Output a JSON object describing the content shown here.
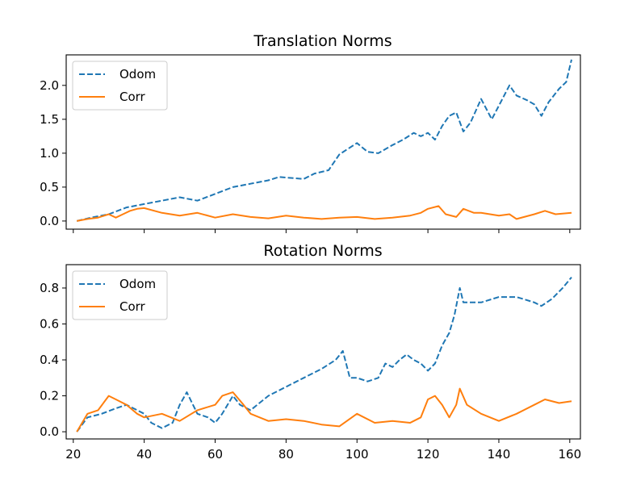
{
  "chart_data": [
    {
      "type": "line",
      "title": "Translation Norms",
      "xlabel": "",
      "ylabel": "",
      "xlim": [
        18,
        163
      ],
      "ylim": [
        -0.12,
        2.45
      ],
      "xticks": [
        20,
        40,
        60,
        80,
        100,
        120,
        140,
        160
      ],
      "show_xtick_labels": false,
      "yticks": [
        0.0,
        0.5,
        1.0,
        1.5,
        2.0
      ],
      "ytick_labels": [
        "0.0",
        "0.5",
        "1.0",
        "1.5",
        "2.0"
      ],
      "grid": false,
      "legend_position": "top-left",
      "series": [
        {
          "name": "Odom",
          "color": "#1f77b4",
          "dash": "dashed",
          "x": [
            21,
            25,
            30,
            35,
            40,
            45,
            50,
            55,
            60,
            65,
            70,
            75,
            78,
            85,
            88,
            92,
            95,
            97,
            100,
            103,
            106,
            110,
            113,
            116,
            118,
            120,
            122,
            124,
            126,
            128,
            130,
            132,
            135,
            138,
            140,
            143,
            145,
            148,
            150,
            152,
            154,
            157,
            159,
            160.5
          ],
          "y": [
            0.0,
            0.05,
            0.1,
            0.2,
            0.25,
            0.3,
            0.35,
            0.3,
            0.4,
            0.5,
            0.55,
            0.6,
            0.65,
            0.62,
            0.7,
            0.75,
            0.98,
            1.05,
            1.15,
            1.02,
            1.0,
            1.12,
            1.2,
            1.3,
            1.25,
            1.3,
            1.2,
            1.4,
            1.55,
            1.6,
            1.32,
            1.45,
            1.8,
            1.5,
            1.7,
            2.0,
            1.85,
            1.78,
            1.72,
            1.55,
            1.75,
            1.95,
            2.05,
            2.38
          ]
        },
        {
          "name": "Corr",
          "color": "#ff7f0e",
          "dash": "solid",
          "x": [
            21,
            24,
            27,
            30,
            32,
            34,
            36,
            38,
            40,
            45,
            50,
            55,
            60,
            65,
            70,
            75,
            80,
            85,
            90,
            95,
            100,
            105,
            110,
            115,
            118,
            120,
            123,
            125,
            128,
            130,
            133,
            135,
            140,
            143,
            145,
            150,
            153,
            156,
            160.5
          ],
          "y": [
            0.0,
            0.03,
            0.05,
            0.1,
            0.05,
            0.1,
            0.15,
            0.18,
            0.19,
            0.12,
            0.08,
            0.12,
            0.05,
            0.1,
            0.06,
            0.04,
            0.08,
            0.05,
            0.03,
            0.05,
            0.06,
            0.03,
            0.05,
            0.08,
            0.12,
            0.18,
            0.22,
            0.1,
            0.06,
            0.18,
            0.12,
            0.12,
            0.08,
            0.1,
            0.03,
            0.1,
            0.15,
            0.1,
            0.12
          ]
        }
      ]
    },
    {
      "type": "line",
      "title": "Rotation Norms",
      "xlabel": "",
      "ylabel": "",
      "xlim": [
        18,
        163
      ],
      "ylim": [
        -0.04,
        0.93
      ],
      "xticks": [
        20,
        40,
        60,
        80,
        100,
        120,
        140,
        160
      ],
      "xtick_labels": [
        "20",
        "40",
        "60",
        "80",
        "100",
        "120",
        "140",
        "160"
      ],
      "show_xtick_labels": true,
      "yticks": [
        0.0,
        0.2,
        0.4,
        0.6,
        0.8
      ],
      "ytick_labels": [
        "0.0",
        "0.2",
        "0.4",
        "0.6",
        "0.8"
      ],
      "grid": false,
      "legend_position": "top-left",
      "series": [
        {
          "name": "Odom",
          "color": "#1f77b4",
          "dash": "dashed",
          "x": [
            21,
            24,
            28,
            32,
            35,
            40,
            42,
            45,
            48,
            50,
            52,
            55,
            58,
            60,
            62,
            65,
            67,
            70,
            75,
            80,
            85,
            90,
            94,
            96,
            98,
            100,
            103,
            106,
            108,
            110,
            112,
            114,
            116,
            118,
            120,
            122,
            124,
            126,
            127.5,
            129,
            130,
            132,
            135,
            140,
            145,
            150,
            152,
            155,
            158,
            160.5
          ],
          "y": [
            0.0,
            0.08,
            0.1,
            0.13,
            0.15,
            0.1,
            0.05,
            0.02,
            0.05,
            0.15,
            0.22,
            0.1,
            0.08,
            0.05,
            0.1,
            0.2,
            0.15,
            0.12,
            0.2,
            0.25,
            0.3,
            0.35,
            0.4,
            0.45,
            0.3,
            0.3,
            0.28,
            0.3,
            0.38,
            0.36,
            0.4,
            0.43,
            0.4,
            0.38,
            0.34,
            0.38,
            0.48,
            0.55,
            0.65,
            0.8,
            0.72,
            0.72,
            0.72,
            0.75,
            0.75,
            0.72,
            0.7,
            0.74,
            0.8,
            0.86
          ]
        },
        {
          "name": "Corr",
          "color": "#ff7f0e",
          "dash": "solid",
          "x": [
            21,
            24,
            27,
            30,
            32,
            35,
            38,
            40,
            45,
            50,
            55,
            60,
            62,
            65,
            68,
            70,
            75,
            80,
            85,
            90,
            95,
            100,
            105,
            110,
            115,
            118,
            120,
            122,
            124,
            126,
            128,
            129,
            131,
            135,
            140,
            145,
            150,
            153,
            157,
            160.5
          ],
          "y": [
            0.0,
            0.1,
            0.12,
            0.2,
            0.18,
            0.15,
            0.1,
            0.08,
            0.1,
            0.06,
            0.12,
            0.15,
            0.2,
            0.22,
            0.15,
            0.1,
            0.06,
            0.07,
            0.06,
            0.04,
            0.03,
            0.1,
            0.05,
            0.06,
            0.05,
            0.08,
            0.18,
            0.2,
            0.15,
            0.08,
            0.15,
            0.24,
            0.15,
            0.1,
            0.06,
            0.1,
            0.15,
            0.18,
            0.16,
            0.17
          ]
        }
      ]
    }
  ]
}
